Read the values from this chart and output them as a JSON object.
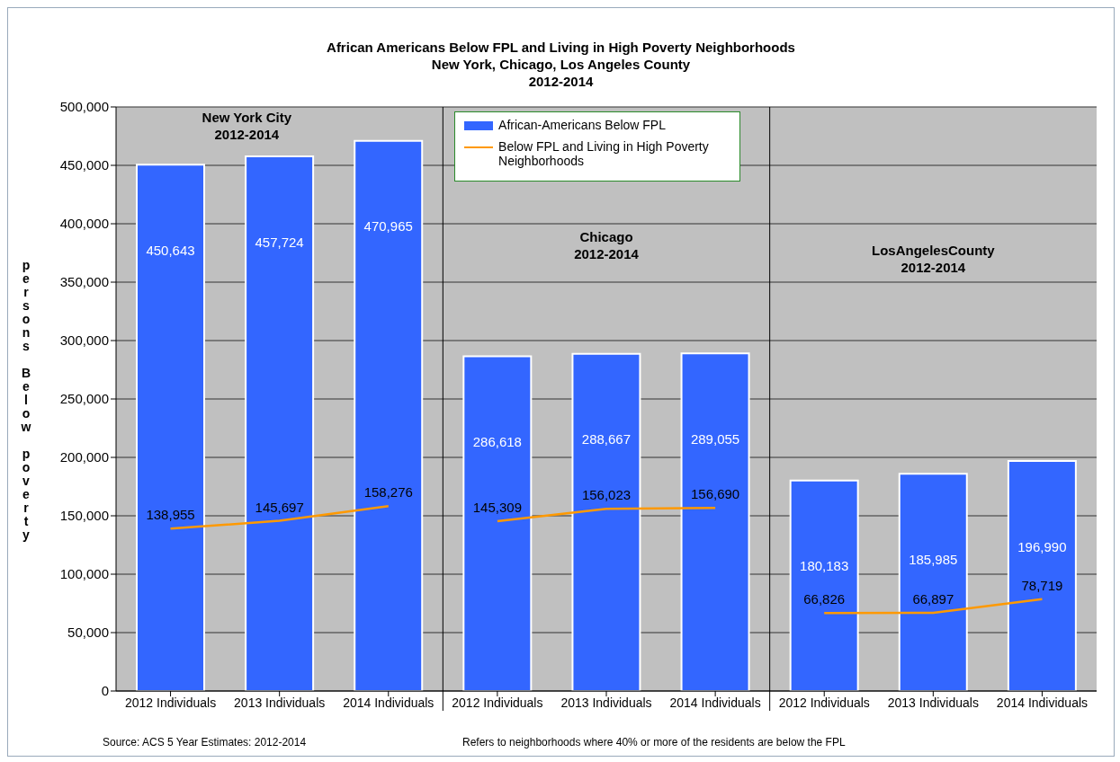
{
  "chart_data": {
    "type": "bar",
    "title": "African Americans Below FPL and Living in High Poverty Neighborhoods\nNew York, Chicago, Los Angeles County\n2012-2014",
    "ylabel": "persons Below poverty",
    "categories": [
      "2012 Individuals",
      "2013 Individuals",
      "2014 Individuals",
      "2012 Individuals",
      "2013 Individuals",
      "2014 Individuals",
      "2012 Individuals",
      "2013 Individuals",
      "2014 Individuals"
    ],
    "series": [
      {
        "name": "African-Americans Below FPL",
        "color": "#3366ff",
        "values": [
          450643,
          457724,
          470965,
          286618,
          288667,
          289055,
          180183,
          185985,
          196990
        ],
        "value_labels": [
          "450,643",
          "457,724",
          "470,965",
          "286,618",
          "288,667",
          "289,055",
          "180,183",
          "185,985",
          "196,990"
        ]
      },
      {
        "name": "Below FPL and Living in High Poverty Neighborhoods",
        "type": "line",
        "color": "#ff9900",
        "values": [
          138955,
          145697,
          158276,
          null,
          null,
          null,
          null,
          null,
          null
        ],
        "value_labels": [
          "138,955",
          "145,697",
          "158,276",
          null,
          null,
          null,
          null,
          null,
          null
        ]
      },
      {
        "type": "line",
        "color": "#ff9900",
        "values": [
          null,
          null,
          null,
          145309,
          156023,
          156690,
          null,
          null,
          null
        ],
        "value_labels": [
          null,
          null,
          null,
          "145,309",
          "156,023",
          "156,690",
          null,
          null,
          null
        ]
      },
      {
        "type": "line",
        "color": "#ff9900",
        "values": [
          null,
          null,
          null,
          null,
          null,
          null,
          66826,
          66897,
          78719
        ],
        "value_labels": [
          null,
          null,
          null,
          null,
          null,
          null,
          "66,826",
          "66,897",
          "78,719"
        ]
      }
    ],
    "ylim": [
      0,
      500000
    ],
    "yticks": [
      0,
      {
        "value": 50000,
        "label": "50,000"
      },
      {
        "value": 100000,
        "label": "100,000"
      },
      {
        "value": 150000,
        "label": "150,000"
      },
      {
        "value": 200000,
        "label": "200,000"
      },
      {
        "value": 250000,
        "label": "250,000"
      },
      {
        "value": 300000,
        "label": "300,000"
      },
      {
        "value": 350000,
        "label": "350,000"
      },
      {
        "value": 400000,
        "label": "400,000"
      },
      {
        "value": 450000,
        "label": "450,000"
      },
      {
        "value": 500000,
        "label": "500,000"
      }
    ],
    "grid": "y",
    "legend": "top",
    "marker": "none",
    "annotations": [
      "New York City\n2012-2014",
      "Chicago\n2012-2014",
      "LosAngelesCounty\n2012-2014",
      "Source: ACS 5 Year Estimates: 2012-2014",
      "Refers to neighborhoods where 40% or more of the residents are below the FPL"
    ]
  }
}
